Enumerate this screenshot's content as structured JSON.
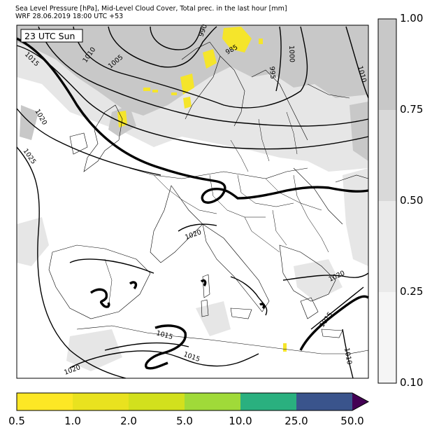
{
  "header": {
    "title_line1": "Sea Level Pressure [hPa], Mid-Level Cloud Cover, Total prec. in the last hour [mm]",
    "title_line2": "WRF 28.06.2019 18:00 UTC +53"
  },
  "map": {
    "time_label": "23 UTC Sun",
    "contour_labels": [
      "990",
      "985",
      "1000",
      "995",
      "1005",
      "1010",
      "1010",
      "1015",
      "1020",
      "1025",
      "1020",
      "1020",
      "1015",
      "1015",
      "1015",
      "1010"
    ],
    "colors": {
      "cloud_light": "#e8e8e8",
      "cloud_mid": "#d6d6d6",
      "cloud_dark": "#c6c6c6",
      "precip": "#f5e52b",
      "isobar": "#000000",
      "coast": "#000000"
    }
  },
  "cloud_colorbar": {
    "ticks": [
      "1.00",
      "0.75",
      "0.50",
      "0.25",
      "0.10"
    ],
    "colors": [
      "#c8c8c8",
      "#d9d9d9",
      "#eaeaea",
      "#f5f5f5"
    ]
  },
  "precip_colorbar": {
    "ticks": [
      "0.5",
      "1.0",
      "2.0",
      "5.0",
      "10.0",
      "25.0",
      "50.0"
    ],
    "colors": [
      "#fde725",
      "#e9e21f",
      "#d2e01d",
      "#a0da39",
      "#2ab07f",
      "#3a548c",
      "#440154"
    ]
  }
}
